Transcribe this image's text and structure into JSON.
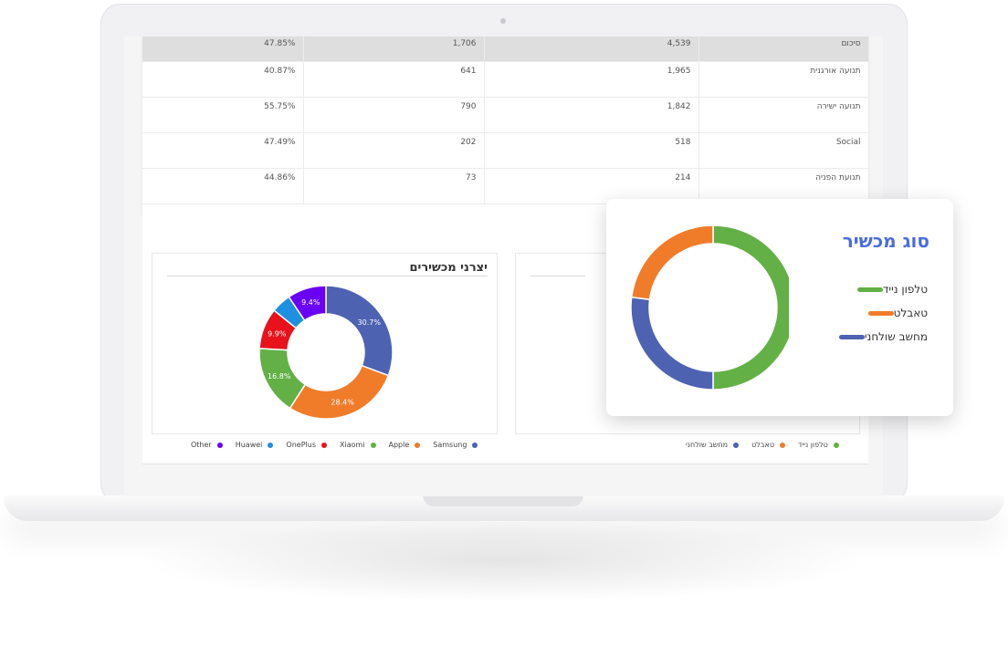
{
  "table": {
    "rows": [
      {
        "label": "סיכום",
        "c2": "4,539",
        "c3": "1,706",
        "c4": "47.85%"
      },
      {
        "label": "תנועה אורגנית",
        "c2": "1,965",
        "c3": "641",
        "c4": "40.87%"
      },
      {
        "label": "תנועה ישירה",
        "c2": "1,842",
        "c3": "790",
        "c4": "55.75%"
      },
      {
        "label": "Social",
        "c2": "518",
        "c3": "202",
        "c4": "47.49%"
      },
      {
        "label": "תנועת הפניה",
        "c2": "214",
        "c3": "73",
        "c4": "44.86%"
      }
    ]
  },
  "manufacturers": {
    "title": "יצרני מכשירים",
    "legend": [
      {
        "name": "Other",
        "color": "#6a00f4"
      },
      {
        "name": "Huawei",
        "color": "#1e90e0"
      },
      {
        "name": "OnePlus",
        "color": "#e8121b"
      },
      {
        "name": "Xiaomi",
        "color": "#62b046"
      },
      {
        "name": "Apple",
        "color": "#f07c2a"
      },
      {
        "name": "Samsung",
        "color": "#4d62b1"
      }
    ]
  },
  "device_panel": {
    "legend": [
      {
        "name": "מחשב שולחני",
        "color": "#4d62b1"
      },
      {
        "name": "טאבלט",
        "color": "#f07c2a"
      },
      {
        "name": "טלפון נייד",
        "color": "#62b046"
      }
    ]
  },
  "device_card": {
    "title": "סוג מכשיר",
    "legend": [
      {
        "name": "טלפון נייד",
        "color": "#62b046"
      },
      {
        "name": "טאבלט",
        "color": "#f07c2a"
      },
      {
        "name": "מחשב שולחני",
        "color": "#4d62b1"
      }
    ]
  },
  "chart_data": [
    {
      "type": "pie",
      "title": "יצרני מכשירים",
      "categories": [
        "Samsung",
        "Apple",
        "Xiaomi",
        "OnePlus",
        "Huawei",
        "Other"
      ],
      "values": [
        30.7,
        28.4,
        16.8,
        9.9,
        4.8,
        9.4
      ],
      "labels": [
        "30.7%",
        "28.4%",
        "16.8%",
        "9.9%",
        "",
        "9.4%"
      ],
      "colors": [
        "#4d62b1",
        "#f07c2a",
        "#62b046",
        "#e8121b",
        "#1e90e0",
        "#6a00f4"
      ]
    },
    {
      "type": "pie",
      "title": "סוג מכשיר",
      "categories": [
        "טלפון נייד",
        "מחשב שולחני",
        "טאבלט"
      ],
      "values": [
        50,
        27,
        23
      ],
      "colors": [
        "#62b046",
        "#4d62b1",
        "#f07c2a"
      ]
    }
  ]
}
